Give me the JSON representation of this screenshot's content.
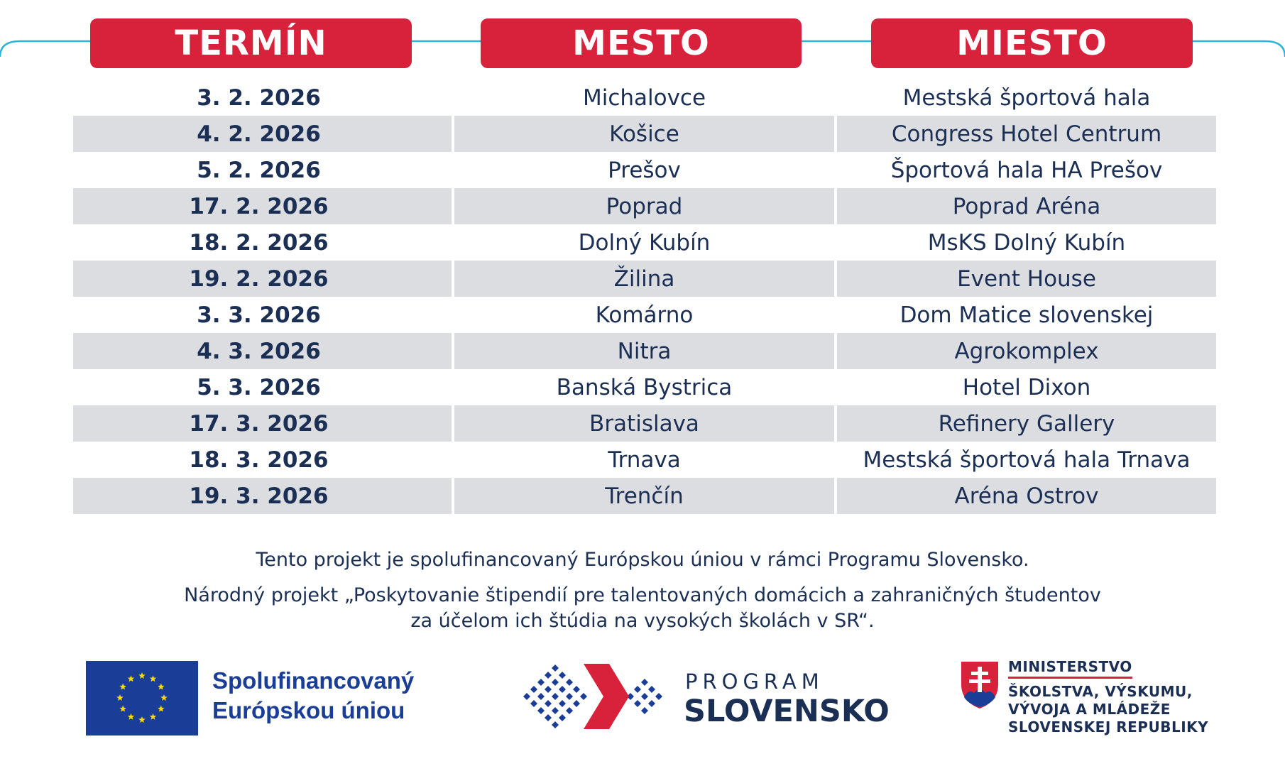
{
  "header": {
    "columns": [
      "TERMÍN",
      "MESTO",
      "MIESTO"
    ]
  },
  "rows": [
    {
      "date": "3. 2. 2026",
      "city": "Michalovce",
      "venue": "Mestská športová hala"
    },
    {
      "date": "4. 2. 2026",
      "city": "Košice",
      "venue": "Congress Hotel Centrum"
    },
    {
      "date": "5. 2. 2026",
      "city": "Prešov",
      "venue": "Športová hala HA Prešov"
    },
    {
      "date": "17. 2. 2026",
      "city": "Poprad",
      "venue": "Poprad Aréna"
    },
    {
      "date": "18. 2. 2026",
      "city": "Dolný Kubín",
      "venue": "MsKS Dolný Kubín"
    },
    {
      "date": "19. 2. 2026",
      "city": "Žilina",
      "venue": "Event House"
    },
    {
      "date": "3. 3. 2026",
      "city": "Komárno",
      "venue": "Dom Matice slovenskej"
    },
    {
      "date": "4. 3. 2026",
      "city": "Nitra",
      "venue": "Agrokomplex"
    },
    {
      "date": "5. 3. 2026",
      "city": "Banská Bystrica",
      "venue": "Hotel Dixon"
    },
    {
      "date": "17. 3. 2026",
      "city": "Bratislava",
      "venue": "Refinery Gallery"
    },
    {
      "date": "18. 3. 2026",
      "city": "Trnava",
      "venue": "Mestská športová hala Trnava"
    },
    {
      "date": "19. 3. 2026",
      "city": "Trenčín",
      "venue": "Aréna Ostrov"
    }
  ],
  "notes": {
    "line1": "Tento projekt je spolufinancovaný Európskou úniou v rámci Programu Slovensko.",
    "line2": "Národný projekt „Poskytovanie štipendií pre talentovaných domácich a zahraničných študentov",
    "line3": "za účelom ich štúdia na vysokých školách v SR“."
  },
  "footer": {
    "eu_line1": "Spolufinancovaný",
    "eu_line2": "Európskou úniou",
    "program_line1": "PROGRAM",
    "program_line2": "SLOVENSKO",
    "ministry_line1": "MINISTERSTVO",
    "ministry_line2": "ŠKOLSTVA, VÝSKUMU,",
    "ministry_line3": "VÝVOJA A MLÁDEŽE",
    "ministry_line4": "SLOVENSKEJ REPUBLIKY"
  },
  "colors": {
    "accent_red": "#d8213b",
    "text_navy": "#1b2f55",
    "row_shade": "#dcdde0",
    "eu_blue": "#1a3e97",
    "eu_star": "#ffdd00",
    "deco_line": "#2bb4d6"
  },
  "icons": [
    "eu-flag-icon",
    "program-slovensko-logo-icon",
    "slovak-coat-of-arms-icon"
  ]
}
